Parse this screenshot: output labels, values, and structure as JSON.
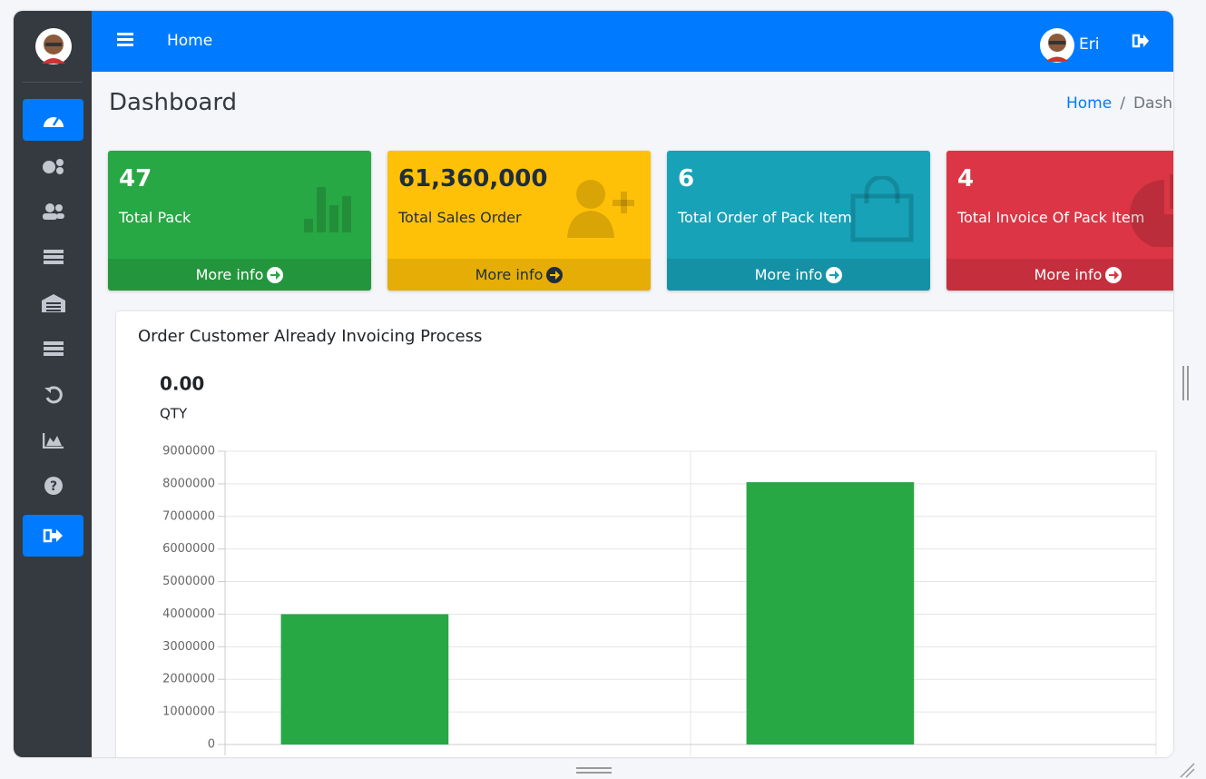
{
  "navbar": {
    "menu_link": "Home",
    "user_name": "Eri"
  },
  "content_header": {
    "title": "Dashboard",
    "breadcrumb": [
      "Home",
      "Dashboard"
    ]
  },
  "cards": [
    {
      "value": "47",
      "label": "Total Pack",
      "link": "More info"
    },
    {
      "value": "61,360,000",
      "label": "Total Sales Order",
      "link": "More info"
    },
    {
      "value": "6",
      "label": "Total Order of Pack Item",
      "link": "More info"
    },
    {
      "value": "4",
      "label": "Total Invoice Of Pack Item",
      "link": "More info"
    }
  ],
  "chart_data": {
    "type": "bar",
    "title": "Order Customer Already Invoicing Process",
    "total": "0.00",
    "total_label": "QTY",
    "categories": [
      null,
      null
    ],
    "values": [
      4000000,
      8050000
    ],
    "color": "#28a745",
    "ylim": [
      0,
      9000000
    ],
    "yticks": [
      0,
      1000000,
      2000000,
      3000000,
      4000000,
      5000000,
      6000000,
      7000000,
      8000000,
      9000000
    ],
    "grid": true
  }
}
